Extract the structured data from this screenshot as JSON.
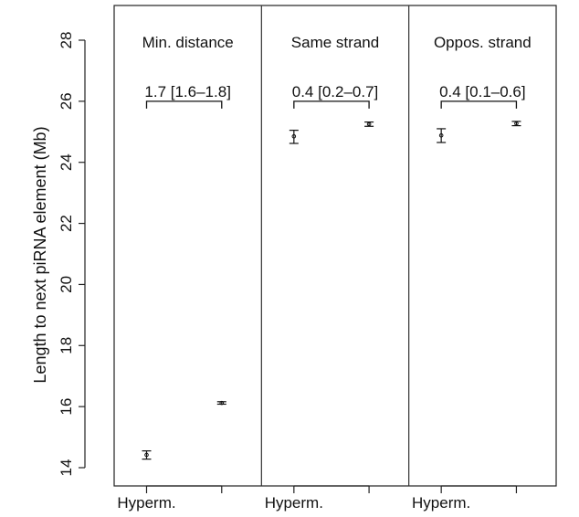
{
  "chart_data": {
    "type": "scatter",
    "ylabel": "Length to next piRNA element (Mb)",
    "ylim": [
      13.8,
      28.1
    ],
    "yticks": [
      14,
      16,
      18,
      20,
      22,
      24,
      26,
      28
    ],
    "x_tick_label": "Hyperm.",
    "panels": [
      {
        "title": "Min. distance",
        "comparison": "1.7 [1.6–1.8]",
        "points": [
          {
            "label": "Hyperm.",
            "mean": 14.42,
            "lower": 14.28,
            "upper": 14.55
          },
          {
            "label": "",
            "mean": 16.12,
            "lower": 16.08,
            "upper": 16.16
          }
        ]
      },
      {
        "title": "Same strand",
        "comparison": "0.4 [0.2–0.7]",
        "points": [
          {
            "label": "Hyperm.",
            "mean": 24.85,
            "lower": 24.62,
            "upper": 25.05
          },
          {
            "label": "",
            "mean": 25.25,
            "lower": 25.18,
            "upper": 25.32
          }
        ]
      },
      {
        "title": "Oppos. strand",
        "comparison": "0.4 [0.1–0.6]",
        "points": [
          {
            "label": "Hyperm.",
            "mean": 24.88,
            "lower": 24.65,
            "upper": 25.1
          },
          {
            "label": "",
            "mean": 25.27,
            "lower": 25.2,
            "upper": 25.34
          }
        ]
      }
    ]
  }
}
